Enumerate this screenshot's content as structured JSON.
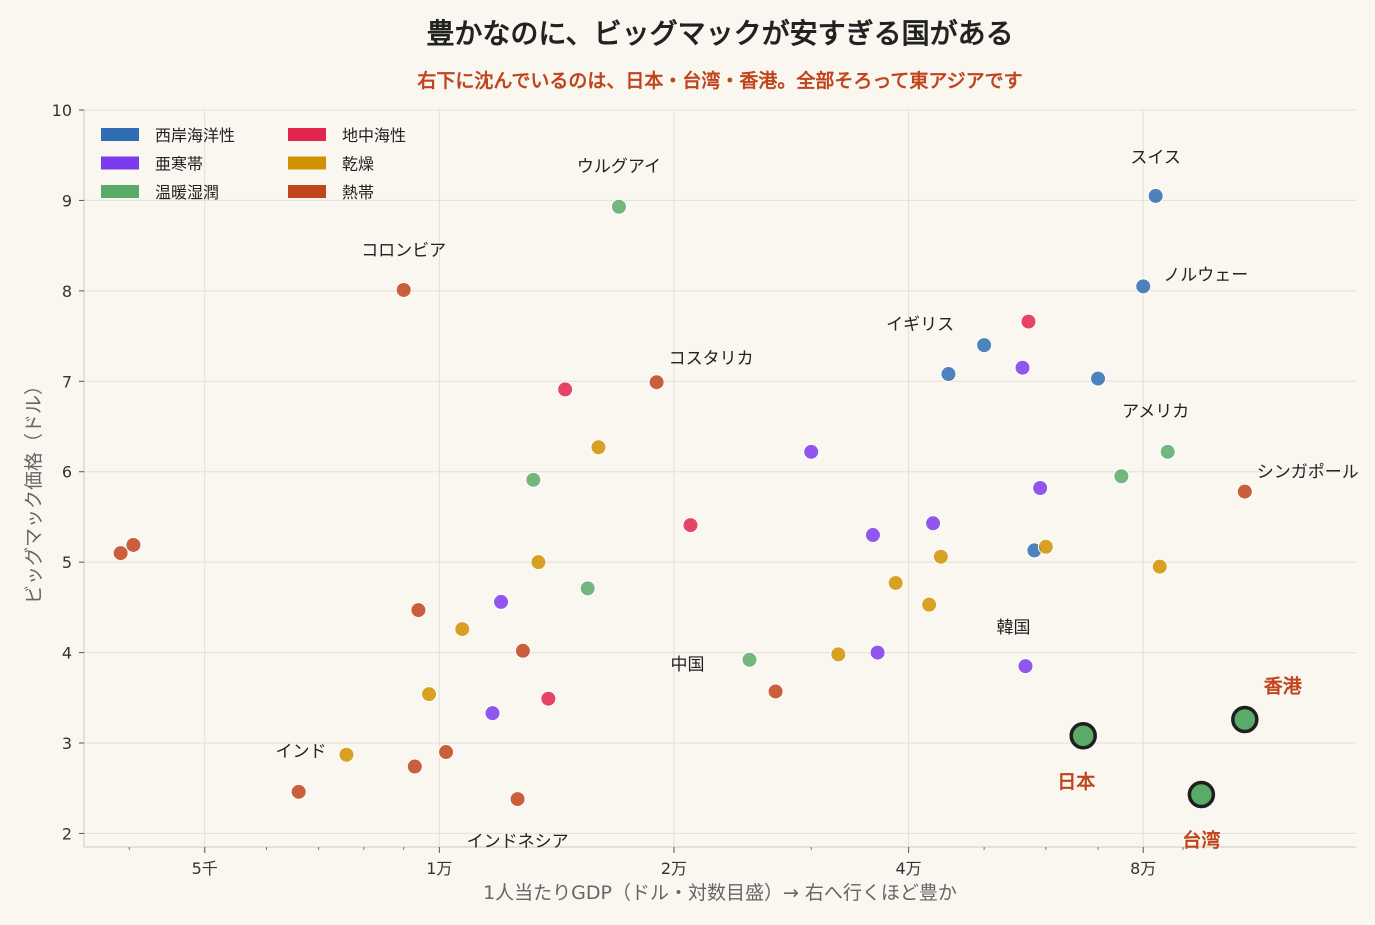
{
  "chart_data": {
    "type": "scatter",
    "title": "豊かなのに、ビッグマックが安すぎる国がある",
    "subtitle": "右下に沈んでいるのは、日本・台湾・香港。全部そろって東アジアです",
    "xlabel": "1人当たりGDP（ドル・対数目盛）→ 右へ行くほど豊か",
    "ylabel": "ビッグマック価格（ドル）",
    "xscale": "log",
    "xlim": [
      3500,
      150000
    ],
    "ylim": [
      1.85,
      10
    ],
    "x_ticks": [
      {
        "value": 5000,
        "label": "5千"
      },
      {
        "value": 10000,
        "label": "1万"
      },
      {
        "value": 20000,
        "label": "2万"
      },
      {
        "value": 40000,
        "label": "4万"
      },
      {
        "value": 80000,
        "label": "8万"
      }
    ],
    "y_ticks": [
      2,
      3,
      4,
      5,
      6,
      7,
      8,
      9,
      10
    ],
    "grid": true,
    "legend_position": "top-left",
    "series": [
      {
        "name": "西岸海洋性",
        "color": "#2e6db4",
        "points": [
          {
            "x": 83000,
            "y": 9.05,
            "label": "スイス"
          },
          {
            "x": 80000,
            "y": 8.05,
            "label": "ノルウェー"
          },
          {
            "x": 50000,
            "y": 7.4,
            "label": "イギリス"
          },
          {
            "x": 45000,
            "y": 7.08
          },
          {
            "x": 70000,
            "y": 7.03
          },
          {
            "x": 58000,
            "y": 5.13
          }
        ]
      },
      {
        "name": "亜寒帯",
        "color": "#7c3aed",
        "points": [
          {
            "x": 30000,
            "y": 6.22
          },
          {
            "x": 56000,
            "y": 7.15
          },
          {
            "x": 59000,
            "y": 5.82
          },
          {
            "x": 43000,
            "y": 5.43
          },
          {
            "x": 36000,
            "y": 5.3
          },
          {
            "x": 12000,
            "y": 4.56
          },
          {
            "x": 36500,
            "y": 4.0
          },
          {
            "x": 56500,
            "y": 3.85,
            "label": "韓国"
          },
          {
            "x": 11700,
            "y": 3.33
          }
        ]
      },
      {
        "name": "温暖湿潤",
        "color": "#5aaa6a",
        "points": [
          {
            "x": 17000,
            "y": 8.93,
            "label": "ウルグアイ"
          },
          {
            "x": 86000,
            "y": 6.22,
            "label": "アメリカ"
          },
          {
            "x": 75000,
            "y": 5.95
          },
          {
            "x": 13200,
            "y": 5.91
          },
          {
            "x": 15500,
            "y": 4.71
          },
          {
            "x": 25000,
            "y": 3.92,
            "label": "中国"
          }
        ]
      },
      {
        "name": "地中海性",
        "color": "#e0254f",
        "points": [
          {
            "x": 57000,
            "y": 7.66
          },
          {
            "x": 14500,
            "y": 6.91
          },
          {
            "x": 21000,
            "y": 5.41
          },
          {
            "x": 13800,
            "y": 3.49
          }
        ]
      },
      {
        "name": "乾燥",
        "color": "#d19200",
        "points": [
          {
            "x": 16000,
            "y": 6.27
          },
          {
            "x": 13400,
            "y": 5.0
          },
          {
            "x": 10700,
            "y": 4.26
          },
          {
            "x": 9700,
            "y": 3.54
          },
          {
            "x": 7600,
            "y": 2.87,
            "label": "インド"
          },
          {
            "x": 32500,
            "y": 3.98
          },
          {
            "x": 38500,
            "y": 4.77
          },
          {
            "x": 42500,
            "y": 4.53
          },
          {
            "x": 44000,
            "y": 5.06
          },
          {
            "x": 60000,
            "y": 5.17
          },
          {
            "x": 84000,
            "y": 4.95
          }
        ]
      },
      {
        "name": "熱帯",
        "color": "#c0441c",
        "points": [
          {
            "x": 9000,
            "y": 8.01,
            "label": "コロンビア"
          },
          {
            "x": 19000,
            "y": 6.99,
            "label": "コスタリカ"
          },
          {
            "x": 108000,
            "y": 5.78,
            "label": "シンガポール"
          },
          {
            "x": 3900,
            "y": 5.1
          },
          {
            "x": 4050,
            "y": 5.19
          },
          {
            "x": 9400,
            "y": 4.47
          },
          {
            "x": 12800,
            "y": 4.02
          },
          {
            "x": 9300,
            "y": 2.74
          },
          {
            "x": 10200,
            "y": 2.9
          },
          {
            "x": 12600,
            "y": 2.38,
            "label": "インドネシア"
          },
          {
            "x": 6600,
            "y": 2.46
          },
          {
            "x": 27000,
            "y": 3.57
          }
        ]
      }
    ],
    "highlights": [
      {
        "label": "日本",
        "x": 67000,
        "y": 3.08,
        "color": "#5aaa6a"
      },
      {
        "label": "香港",
        "x": 108000,
        "y": 3.26,
        "color": "#5aaa6a"
      },
      {
        "label": "台湾",
        "x": 95000,
        "y": 2.43,
        "color": "#5aaa6a"
      }
    ]
  }
}
